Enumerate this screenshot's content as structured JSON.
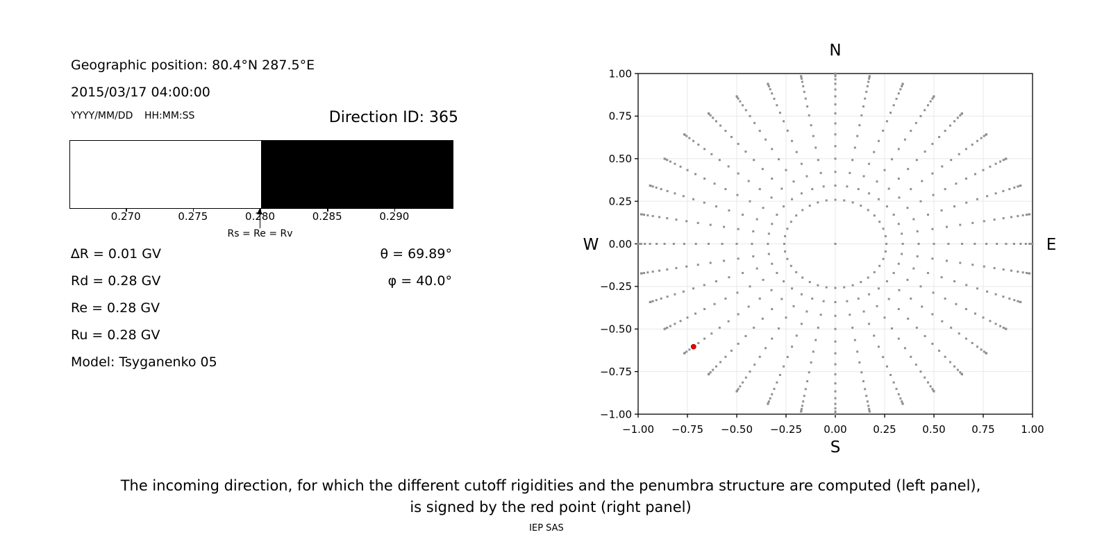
{
  "page": {
    "background": "#ffffff",
    "text_color": "#000000"
  },
  "left_panel": {
    "geo_position": "Geographic position: 80.4°N 287.5°E",
    "datetime": "2015/03/17 04:00:00",
    "date_format_hint": "YYYY/MM/DD",
    "time_format_hint": "HH:MM:SS",
    "direction_id": "Direction ID: 365",
    "values": [
      "∆R = 0.01 GV",
      "Rd = 0.28 GV",
      "Re = 0.28 GV",
      "Ru = 0.28 GV",
      "Model: Tsyganenko 05"
    ],
    "theta": "θ = 69.89°",
    "phi": "φ = 40.0°"
  },
  "caption": {
    "line1": "The incoming direction, for which the different cutoff rigidities and the penumbra structure are computed (left panel),",
    "line2": "is signed by the red point (right panel)",
    "credit": "IEP SAS"
  },
  "chart_data": [
    {
      "id": "penumbra-structure",
      "type": "area",
      "title": "",
      "xlim": [
        0.2658,
        0.2943
      ],
      "xtick_values": [
        0.27,
        0.275,
        0.28,
        0.285,
        0.29
      ],
      "xtick_labels": [
        "0.270",
        "0.275",
        "0.280",
        "0.285",
        "0.290"
      ],
      "bands": [
        {
          "x0": 0.2658,
          "x1": 0.28,
          "color": "#ffffff"
        },
        {
          "x0": 0.28,
          "x1": 0.2943,
          "color": "#000000"
        }
      ],
      "annotation": {
        "x": 0.28,
        "label": "Rs = Re = Rv"
      },
      "border_color": "#000000"
    },
    {
      "id": "incoming-directions",
      "type": "scatter",
      "title": "",
      "xlim": [
        -1.0,
        1.0
      ],
      "ylim": [
        -1.0,
        1.0
      ],
      "xtick_values": [
        -1.0,
        -0.75,
        -0.5,
        -0.25,
        0.0,
        0.25,
        0.5,
        0.75,
        1.0
      ],
      "xtick_labels": [
        "−1.00",
        "−0.75",
        "−0.50",
        "−0.25",
        "0.00",
        "0.25",
        "0.50",
        "0.75",
        "1.00"
      ],
      "ytick_values": [
        1.0,
        0.75,
        0.5,
        0.25,
        0.0,
        -0.25,
        -0.5,
        -0.75,
        -1.0
      ],
      "ytick_labels": [
        "1.00",
        "0.75",
        "0.50",
        "0.25",
        "0.00",
        "−0.25",
        "−0.50",
        "−0.75",
        "−1.00"
      ],
      "grid": true,
      "grid_color": "#e8e8e8",
      "compass_labels": {
        "top": "N",
        "bottom": "S",
        "left": "W",
        "right": "E"
      },
      "series": [
        {
          "name": "direction-grid",
          "marker": "square",
          "marker_px": 3,
          "color": "#909090",
          "generator": {
            "kind": "radial-spokes",
            "azimuth_deg_start": 0,
            "azimuth_deg_step": 10,
            "azimuth_count": 36,
            "theta_deg_from": 15,
            "theta_deg_to": 90,
            "theta_deg_step": 5,
            "radius_formula": "sin(theta)",
            "include_center_dot": true
          }
        },
        {
          "name": "selected-direction",
          "marker": "circle",
          "marker_px": 7,
          "color": "#ee0000",
          "edge_color": "#990000",
          "points": [
            [
              -0.719,
              -0.604
            ]
          ],
          "theta_deg": 69.89,
          "phi_deg": 40.0
        }
      ]
    }
  ]
}
